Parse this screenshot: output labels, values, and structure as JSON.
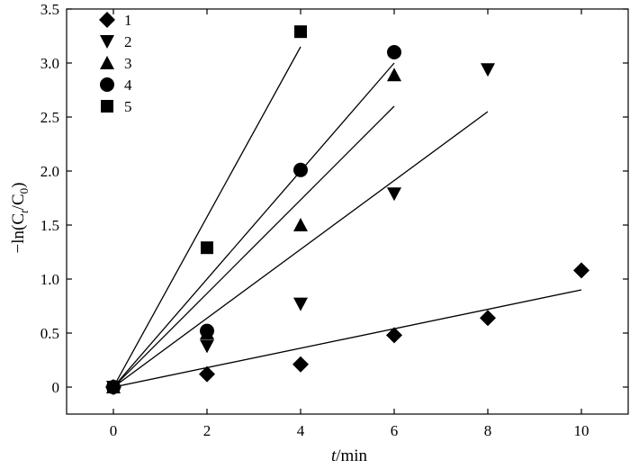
{
  "chart_data": {
    "type": "scatter",
    "xlabel_italic": "t",
    "xlabel_rest": "/min",
    "ylabel": "−ln(C",
    "ylabel_sub1": "t",
    "ylabel_mid": "/C",
    "ylabel_sub2": "0",
    "ylabel_end": ")",
    "xlim": [
      -1,
      11
    ],
    "ylim": [
      -0.25,
      3.5
    ],
    "xticks": [
      0,
      2,
      4,
      6,
      8,
      10
    ],
    "xtick_labels": [
      "0",
      "2",
      "4",
      "6",
      "8",
      "10"
    ],
    "yticks": [
      0,
      0.5,
      1.0,
      1.5,
      2.0,
      2.5,
      3.0,
      3.5
    ],
    "ytick_labels": [
      "0",
      "0.5",
      "1.0",
      "1.5",
      "2.0",
      "2.5",
      "3.0",
      "3.5"
    ],
    "grid": false,
    "legend_position": "top-left",
    "series": [
      {
        "name": "1",
        "marker": "diamond",
        "points": [
          [
            0,
            0
          ],
          [
            2,
            0.12
          ],
          [
            4,
            0.21
          ],
          [
            6,
            0.48
          ],
          [
            8,
            0.64
          ],
          [
            10,
            1.08
          ]
        ],
        "fit_line": [
          [
            0,
            0
          ],
          [
            10,
            0.9
          ]
        ]
      },
      {
        "name": "2",
        "marker": "triangle-down",
        "points": [
          [
            0,
            0
          ],
          [
            2,
            0.38
          ],
          [
            4,
            0.77
          ],
          [
            6,
            1.79
          ],
          [
            8,
            2.94
          ]
        ],
        "fit_line": [
          [
            0,
            0
          ],
          [
            8,
            2.55
          ]
        ]
      },
      {
        "name": "3",
        "marker": "triangle-up",
        "points": [
          [
            0,
            0
          ],
          [
            2,
            0.5
          ],
          [
            4,
            1.5
          ],
          [
            6,
            2.89
          ]
        ],
        "fit_line": [
          [
            0,
            0
          ],
          [
            6,
            2.6
          ]
        ]
      },
      {
        "name": "4",
        "marker": "circle",
        "points": [
          [
            0,
            0
          ],
          [
            2,
            0.52
          ],
          [
            4,
            2.01
          ],
          [
            6,
            3.1
          ]
        ],
        "fit_line": [
          [
            0,
            0
          ],
          [
            6,
            3.0
          ]
        ]
      },
      {
        "name": "5",
        "marker": "square",
        "points": [
          [
            0,
            0
          ],
          [
            2,
            1.29
          ],
          [
            4,
            3.29
          ]
        ],
        "fit_line": [
          [
            0,
            0
          ],
          [
            4,
            3.15
          ]
        ]
      }
    ]
  }
}
